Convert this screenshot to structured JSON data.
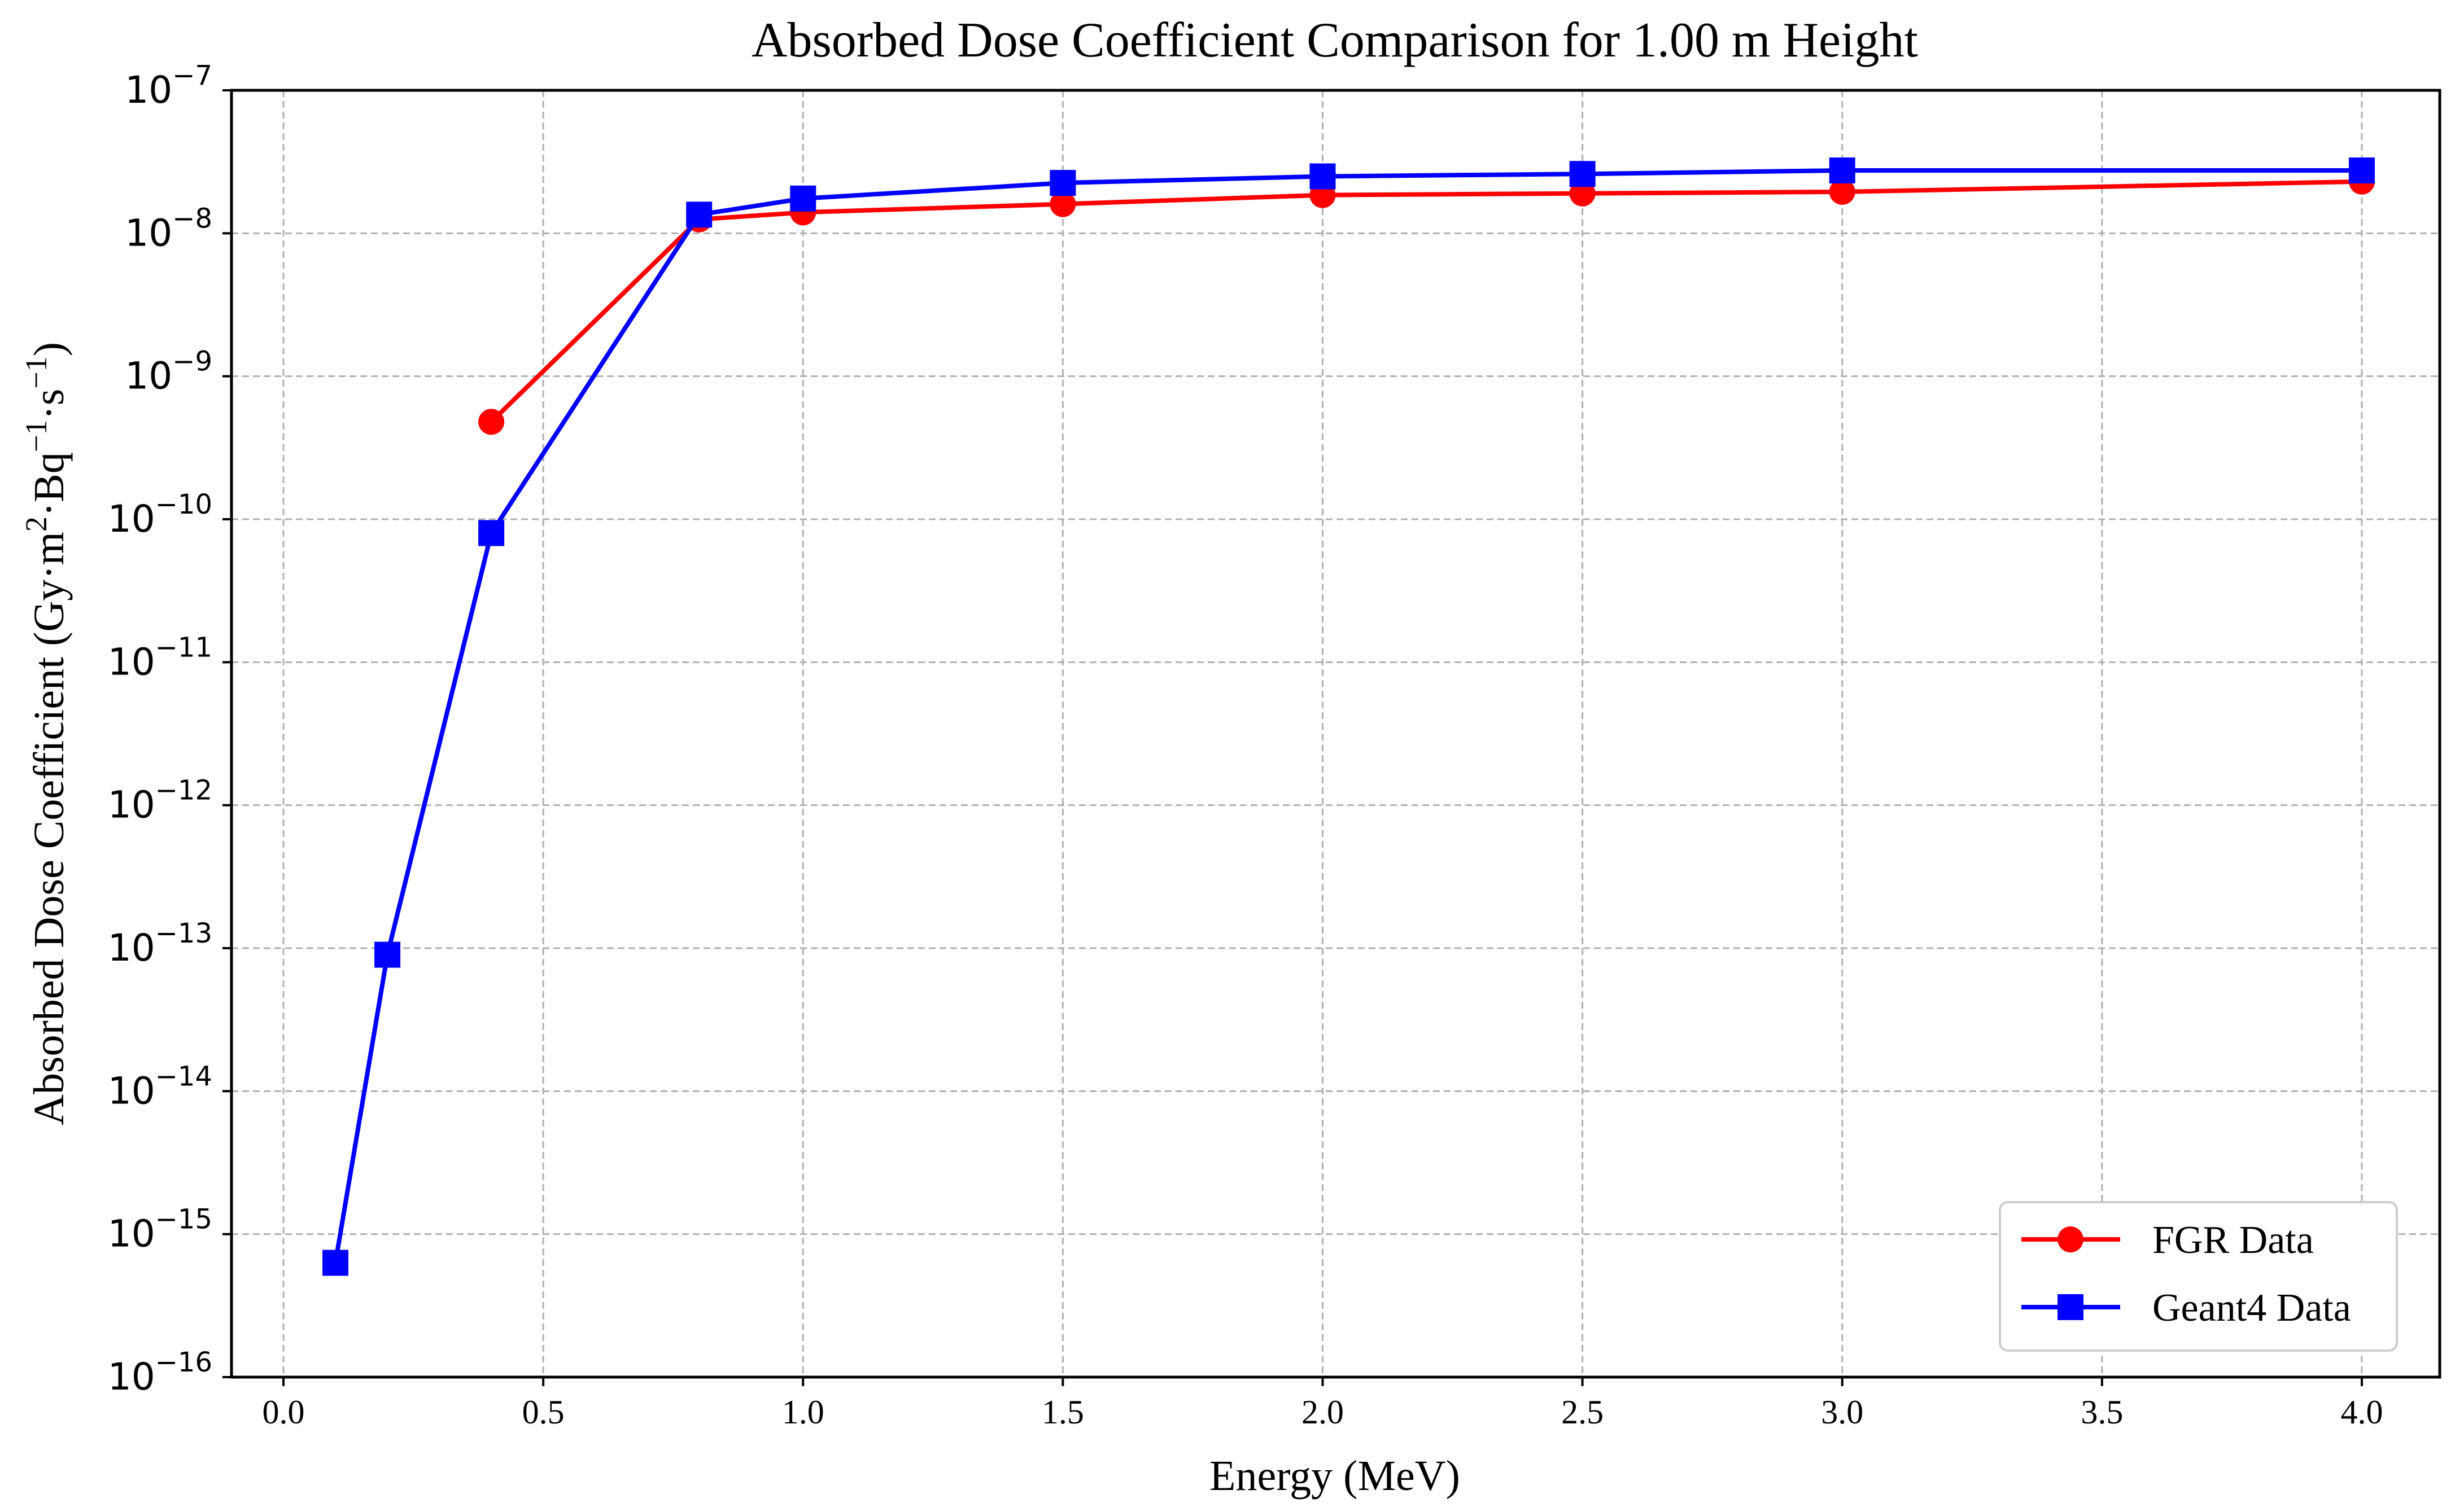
{
  "chart_data": {
    "type": "line",
    "title": "Absorbed Dose Coefficient Comparison for 1.00 m Height",
    "xlabel": "Energy (MeV)",
    "ylabel": "Absorbed Dose Coefficient (Gy·m²·Bq⁻¹·s⁻¹)",
    "ylabel_parts": {
      "p1": "Absorbed Dose Coefficient (Gy·m",
      "sup1": "2",
      "p2": "·Bq",
      "sup2": "−1",
      "p3": "·s",
      "sup3": "−1",
      "p4": ")"
    },
    "xscale": "linear",
    "yscale": "log",
    "xlim": [
      -0.1,
      4.15
    ],
    "ylim_exponents": [
      -16,
      -7
    ],
    "xticks": [
      "0.0",
      "0.5",
      "1.0",
      "1.5",
      "2.0",
      "2.5",
      "3.0",
      "3.5",
      "4.0"
    ],
    "yticks": [
      {
        "base": "10",
        "exp": "−16"
      },
      {
        "base": "10",
        "exp": "−15"
      },
      {
        "base": "10",
        "exp": "−14"
      },
      {
        "base": "10",
        "exp": "−13"
      },
      {
        "base": "10",
        "exp": "−12"
      },
      {
        "base": "10",
        "exp": "−11"
      },
      {
        "base": "10",
        "exp": "−10"
      },
      {
        "base": "10",
        "exp": "−9"
      },
      {
        "base": "10",
        "exp": "−8"
      },
      {
        "base": "10",
        "exp": "−7"
      }
    ],
    "grid": true,
    "legend_position": "bottom-right",
    "series": [
      {
        "name": "FGR Data",
        "color": "#ff0000",
        "marker": "circle",
        "x": [
          0.4,
          0.8,
          1.0,
          1.5,
          2.0,
          2.5,
          3.0,
          4.0
        ],
        "y": [
          4.8e-10,
          1.25e-08,
          1.4e-08,
          1.6e-08,
          1.85e-08,
          1.9e-08,
          1.95e-08,
          2.3e-08
        ]
      },
      {
        "name": "Geant4 Data",
        "color": "#0000ff",
        "marker": "square",
        "x": [
          0.1,
          0.2,
          0.4,
          0.8,
          1.0,
          1.5,
          2.0,
          2.5,
          3.0,
          4.0
        ],
        "y": [
          6.3e-16,
          9e-14,
          8e-11,
          1.35e-08,
          1.75e-08,
          2.25e-08,
          2.5e-08,
          2.6e-08,
          2.75e-08,
          2.75e-08
        ]
      }
    ]
  }
}
